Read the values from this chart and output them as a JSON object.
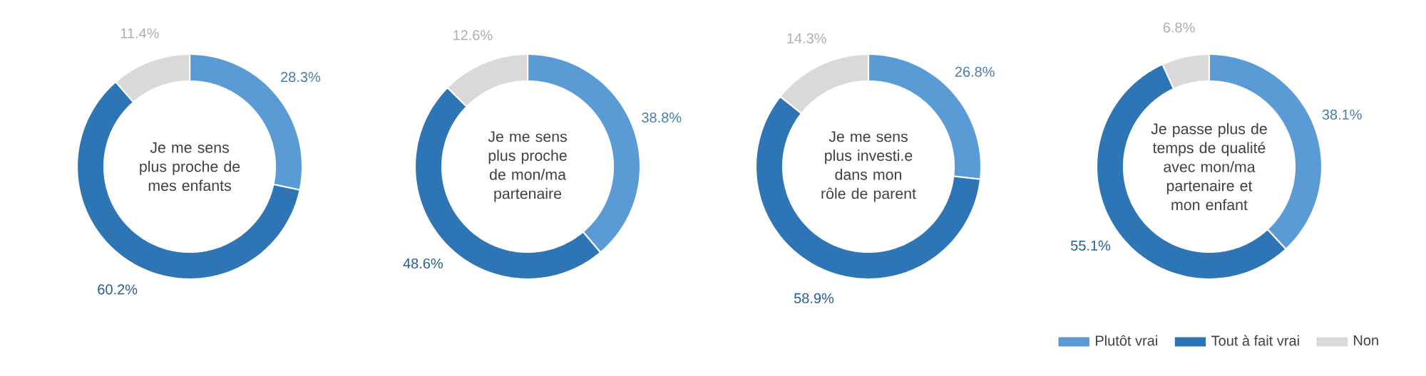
{
  "chart_data": [
    {
      "type": "donut",
      "title": "Je me sens plus proche de mes enfants",
      "categories": [
        null,
        null,
        null
      ],
      "values": [
        28.3,
        60.2,
        11.4
      ],
      "colors": [
        "#5b9bd5",
        "#2e75b6",
        "#d9d9d9"
      ],
      "value_labels": [
        "28.3%",
        "60.2%",
        "11.4%"
      ]
    },
    {
      "type": "donut",
      "title": "Je me sens plus proche de mon/ma partenaire",
      "categories": [
        null,
        null,
        null
      ],
      "values": [
        38.8,
        48.6,
        12.6
      ],
      "colors": [
        "#5b9bd5",
        "#2e75b6",
        "#d9d9d9"
      ],
      "value_labels": [
        "38.8%",
        "48.6%",
        "12.6%"
      ]
    },
    {
      "type": "donut",
      "title": "Je me sens plus investi.e dans mon rôle de parent",
      "categories": [
        null,
        null,
        null
      ],
      "values": [
        26.8,
        58.9,
        14.3
      ],
      "colors": [
        "#5b9bd5",
        "#2e75b6",
        "#d9d9d9"
      ],
      "value_labels": [
        "26.8%",
        "58.9%",
        "14.3%"
      ]
    },
    {
      "type": "donut",
      "title": "Je passe plus de temps de qualité avec mon/ma partenaire et mon enfant",
      "categories": [
        "Plutôt vrai",
        "Tout à fait vrai",
        "Non"
      ],
      "values": [
        38.1,
        55.1,
        6.8
      ],
      "colors": [
        "#5b9bd5",
        "#2e75b6",
        "#d9d9d9"
      ],
      "value_labels": [
        "38.1%",
        "55.1%",
        "6.8%"
      ],
      "legend": "bottom right"
    }
  ]
}
